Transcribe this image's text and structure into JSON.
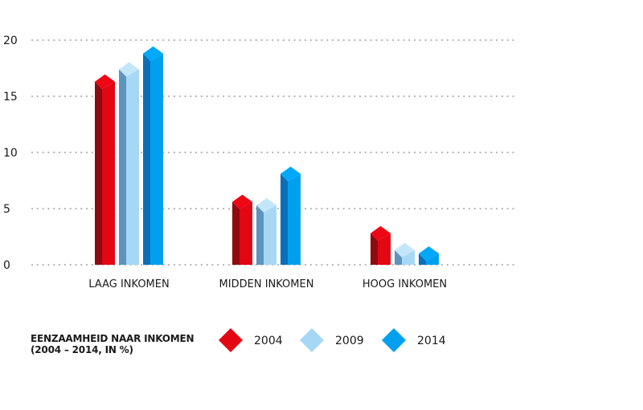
{
  "chart_data": {
    "type": "bar",
    "title": [
      "EENZAAMHEID NAAR INKOMEN",
      "(2004 – 2014, IN %)"
    ],
    "xlabel": "",
    "ylabel": "",
    "ylim": [
      0,
      20
    ],
    "yticks": [
      "0",
      "5",
      "10",
      "15",
      "20"
    ],
    "grid": true,
    "legend_position": "bottom",
    "categories": [
      "LAAG INKOMEN",
      "MIDDEN INKOMEN",
      "HOOG INKOMEN"
    ],
    "series": [
      {
        "name": "2004",
        "color": "#e30613",
        "values": [
          16.3,
          5.6,
          2.8
        ]
      },
      {
        "name": "2009",
        "color": "#a6d8f5",
        "values": [
          17.4,
          5.3,
          1.3
        ]
      },
      {
        "name": "2014",
        "color": "#00a0ef",
        "values": [
          18.8,
          8.1,
          1.0
        ]
      }
    ]
  }
}
